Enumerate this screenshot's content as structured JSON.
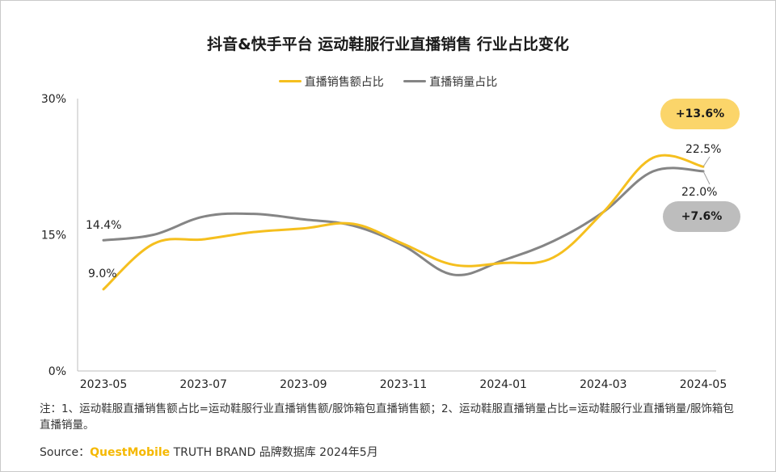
{
  "title": "抖音&快手平台 运动鞋服行业直播销售 行业占比变化",
  "colors": {
    "sales": "#f5bf1e",
    "volume": "#858585",
    "badge_sales": "#fbd56a",
    "badge_volume": "#bdbdbd"
  },
  "chart_data": {
    "type": "line",
    "title": "抖音&快手平台 运动鞋服行业直播销售 行业占比变化",
    "x": [
      "2023-05",
      "2023-06",
      "2023-07",
      "2023-08",
      "2023-09",
      "2023-10",
      "2023-11",
      "2023-12",
      "2024-01",
      "2024-02",
      "2024-03",
      "2024-04",
      "2024-05"
    ],
    "x_tick_labels": [
      "2023-05",
      "2023-07",
      "2023-09",
      "2023-11",
      "2024-01",
      "2024-03",
      "2024-05"
    ],
    "y_tick_labels": [
      "30%",
      "15%",
      "0%"
    ],
    "ylim": [
      0,
      30
    ],
    "y_unit": "%",
    "grid": false,
    "legend_position": "top",
    "series": [
      {
        "name": "直播销售额占比",
        "values": [
          9.0,
          14.0,
          14.5,
          15.3,
          15.7,
          16.2,
          14.0,
          11.7,
          11.9,
          12.5,
          17.5,
          23.5,
          22.5
        ]
      },
      {
        "name": "直播销量占比",
        "values": [
          14.4,
          15.0,
          17.0,
          17.3,
          16.7,
          16.0,
          13.8,
          10.6,
          12.2,
          14.3,
          17.5,
          22.0,
          22.0
        ]
      }
    ],
    "data_labels": {
      "sales_start": "9.0%",
      "volume_start": "14.4%",
      "sales_end": "22.5%",
      "volume_end": "22.0%"
    },
    "annotations": {
      "sales_change": "+13.6%",
      "volume_change": "+7.6%"
    }
  },
  "footnote": "注：1、运动鞋服直播销售额占比=运动鞋服行业直播销售额/服饰箱包直播销售额；2、运动鞋服直播销量占比=运动鞋服行业直播销量/服饰箱包直播销量。",
  "source": {
    "prefix": "Source：",
    "brand": "QuestMobile",
    "text": " TRUTH BRAND 品牌数据库 2024年5月"
  }
}
